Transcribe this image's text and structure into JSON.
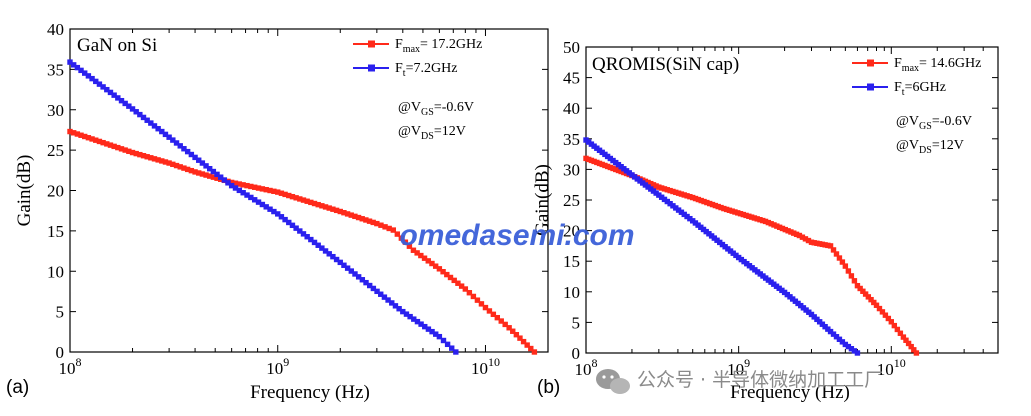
{
  "chart_data": [
    {
      "type": "line",
      "panel_label": "(a)",
      "title": "GaN on Si",
      "xlabel": "Frequency (Hz)",
      "ylabel": "Gain(dB)",
      "xscale": "log",
      "xlim": [
        100000000,
        20000000000
      ],
      "ylim": [
        0,
        40
      ],
      "yticks": [
        0,
        5,
        10,
        15,
        20,
        25,
        30,
        35,
        40
      ],
      "xtick_labels": [
        {
          "base": "10",
          "exp": "8",
          "value": 100000000
        },
        {
          "base": "10",
          "exp": "9",
          "value": 1000000000
        },
        {
          "base": "10",
          "exp": "10",
          "value": 10000000000
        }
      ],
      "legend_position": "top-right",
      "series": [
        {
          "name_main": "F",
          "name_sub": "max",
          "name_rest": "= 17.2GHz",
          "color": "#ff2a1a",
          "marker": "square",
          "points": [
            [
              100000000,
              27.3
            ],
            [
              200000000,
              24.7
            ],
            [
              300000000,
              23.4
            ],
            [
              400000000,
              22.3
            ],
            [
              600000000,
              21.0
            ],
            [
              1000000000,
              19.8
            ],
            [
              2000000000,
              17.4
            ],
            [
              3000000000,
              15.9
            ],
            [
              3600000000,
              15.1
            ],
            [
              4500000000,
              12.6
            ],
            [
              6000000000,
              10.3
            ],
            [
              8000000000,
              7.8
            ],
            [
              10000000000,
              5.5
            ],
            [
              13000000000,
              3.0
            ],
            [
              17200000000,
              0
            ]
          ]
        },
        {
          "name_main": "F",
          "name_sub": "t",
          "name_rest": "=7.2GHz",
          "color": "#2a20ee",
          "marker": "square",
          "points": [
            [
              100000000,
              35.9
            ],
            [
              200000000,
              30.1
            ],
            [
              300000000,
              26.6
            ],
            [
              400000000,
              24.1
            ],
            [
              600000000,
              20.6
            ],
            [
              1000000000,
              17.1
            ],
            [
              2000000000,
              11.1
            ],
            [
              4000000000,
              5.0
            ],
            [
              6000000000,
              1.9
            ],
            [
              7200000000,
              0
            ]
          ]
        }
      ],
      "annotations": [
        {
          "main": "@V",
          "sub": "GS",
          "rest": "=-0.6V"
        },
        {
          "main": "@V",
          "sub": "DS",
          "rest": "=12V"
        }
      ]
    },
    {
      "type": "line",
      "panel_label": "(b)",
      "title": "QROMIS(SiN cap)",
      "xlabel": "Frequency (Hz)",
      "ylabel": "Gain(dB)",
      "xscale": "log",
      "xlim": [
        100000000,
        50000000000
      ],
      "ylim": [
        0,
        50
      ],
      "yticks": [
        0,
        5,
        10,
        15,
        20,
        25,
        30,
        35,
        40,
        45,
        50
      ],
      "xtick_labels": [
        {
          "base": "10",
          "exp": "8",
          "value": 100000000
        },
        {
          "base": "10",
          "exp": "9",
          "value": 1000000000
        },
        {
          "base": "10",
          "exp": "10",
          "value": 10000000000
        }
      ],
      "legend_position": "top-right",
      "series": [
        {
          "name_main": "F",
          "name_sub": "max",
          "name_rest": "= 14.6GHz",
          "color": "#ff2a1a",
          "marker": "square",
          "points": [
            [
              100000000,
              31.8
            ],
            [
              200000000,
              29.0
            ],
            [
              300000000,
              27.1
            ],
            [
              500000000,
              25.4
            ],
            [
              800000000,
              23.6
            ],
            [
              1500000000,
              21.5
            ],
            [
              2500000000,
              19.2
            ],
            [
              3000000000,
              18.1
            ],
            [
              4000000000,
              17.5
            ],
            [
              5000000000,
              14.2
            ],
            [
              6000000000,
              11.0
            ],
            [
              8000000000,
              7.8
            ],
            [
              10000000000,
              5.1
            ],
            [
              12000000000,
              2.6
            ],
            [
              14600000000,
              0
            ]
          ]
        },
        {
          "name_main": "F",
          "name_sub": "t",
          "name_rest": "=6GHz",
          "color": "#2a20ee",
          "marker": "square",
          "points": [
            [
              100000000,
              34.8
            ],
            [
              200000000,
              29.1
            ],
            [
              300000000,
              25.8
            ],
            [
              500000000,
              21.6
            ],
            [
              1000000000,
              15.6
            ],
            [
              2000000000,
              9.9
            ],
            [
              3000000000,
              6.3
            ],
            [
              4000000000,
              3.5
            ],
            [
              5000000000,
              1.4
            ],
            [
              6000000000,
              0
            ]
          ]
        }
      ],
      "annotations": [
        {
          "main": "@V",
          "sub": "GS",
          "rest": "=-0.6V"
        },
        {
          "main": "@V",
          "sub": "DS",
          "rest": "=12V"
        }
      ]
    }
  ],
  "watermark": {
    "text": "omedasemi.com"
  },
  "footer": {
    "wechat_text": "公众号 · 半导体微纳加工工厂"
  }
}
